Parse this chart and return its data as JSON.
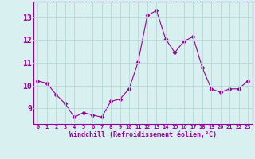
{
  "x": [
    0,
    1,
    2,
    3,
    4,
    5,
    6,
    7,
    8,
    9,
    10,
    11,
    12,
    13,
    14,
    15,
    16,
    17,
    18,
    19,
    20,
    21,
    22,
    23
  ],
  "y": [
    10.2,
    10.1,
    9.6,
    9.2,
    8.6,
    8.8,
    8.7,
    8.6,
    9.3,
    9.4,
    9.85,
    11.05,
    13.1,
    13.3,
    12.05,
    11.45,
    11.95,
    12.15,
    10.8,
    9.85,
    9.7,
    9.85,
    9.85,
    10.2
  ],
  "line_color": "#990099",
  "marker": "D",
  "marker_size": 2.5,
  "bg_color": "#d8f0f0",
  "grid_color": "#b8d8d8",
  "xlabel": "Windchill (Refroidissement éolien,°C)",
  "xlabel_color": "#990099",
  "ylabel_ticks": [
    9,
    10,
    11,
    12,
    13
  ],
  "xtick_labels": [
    "0",
    "1",
    "2",
    "3",
    "4",
    "5",
    "6",
    "7",
    "8",
    "9",
    "10",
    "11",
    "12",
    "13",
    "14",
    "15",
    "16",
    "17",
    "18",
    "19",
    "20",
    "21",
    "22",
    "23"
  ],
  "ylim": [
    8.3,
    13.7
  ],
  "xlim": [
    -0.5,
    23.5
  ],
  "font_color": "#990099"
}
